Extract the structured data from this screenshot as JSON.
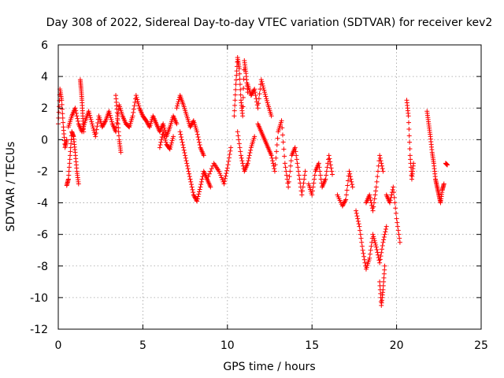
{
  "chart_data": {
    "type": "scatter",
    "title": "Day 308 of 2022, Sidereal Day-to-day VTEC variation (SDTVAR) for receiver kev2",
    "xlabel": "GPS time / hours",
    "ylabel": "SDTVAR / TECUs",
    "xlim": [
      0,
      25
    ],
    "ylim": [
      -12,
      6
    ],
    "xticks": [
      0,
      5,
      10,
      15,
      20,
      25
    ],
    "yticks": [
      -12,
      -10,
      -8,
      -6,
      -4,
      -2,
      0,
      2,
      4,
      6
    ],
    "grid": true,
    "marker": "+",
    "color": "#ff0000",
    "series": [
      {
        "name": "SDTVAR",
        "segments": [
          {
            "x": [
              0.0,
              0.1,
              0.2,
              0.3,
              0.4,
              0.5
            ],
            "y": [
              1.0,
              3.2,
              2.5,
              0.8,
              -0.5,
              0.0
            ]
          },
          {
            "x": [
              0.5,
              0.6,
              0.7,
              0.8,
              0.9,
              1.0,
              1.1,
              1.2
            ],
            "y": [
              -2.9,
              -2.5,
              -1.0,
              0.5,
              0.2,
              -0.8,
              -2.0,
              -2.8
            ]
          },
          {
            "x": [
              0.6,
              0.8,
              1.0,
              1.2,
              1.4,
              1.6,
              1.8,
              2.0,
              2.2,
              2.4,
              2.6,
              2.8,
              3.0,
              3.2,
              3.4,
              3.6,
              3.8,
              4.0,
              4.2,
              4.4,
              4.6,
              4.8,
              5.0,
              5.2,
              5.4,
              5.6,
              5.8,
              6.0,
              6.2,
              6.4,
              6.6,
              6.8,
              7.0
            ],
            "y": [
              0.8,
              1.5,
              2.0,
              1.0,
              0.5,
              1.2,
              1.8,
              1.0,
              0.2,
              1.5,
              0.8,
              1.2,
              1.8,
              1.0,
              0.5,
              2.2,
              1.5,
              1.0,
              0.8,
              1.5,
              2.8,
              2.0,
              1.5,
              1.2,
              0.8,
              1.5,
              1.0,
              0.5,
              1.0,
              0.2,
              0.8,
              1.5,
              1.0
            ]
          },
          {
            "x": [
              1.3,
              1.35,
              1.4,
              1.45,
              1.5
            ],
            "y": [
              3.8,
              3.2,
              2.5,
              1.5,
              0.5
            ]
          },
          {
            "x": [
              3.4,
              3.5,
              3.6,
              3.7
            ],
            "y": [
              2.8,
              1.5,
              0.0,
              -0.8
            ]
          },
          {
            "x": [
              6.0,
              6.2,
              6.4,
              6.6,
              6.8
            ],
            "y": [
              -0.5,
              0.5,
              -0.3,
              -0.6,
              0.2
            ]
          },
          {
            "x": [
              7.0,
              7.2,
              7.4,
              7.6,
              7.8,
              8.0,
              8.2,
              8.4,
              8.6
            ],
            "y": [
              2.0,
              2.8,
              2.2,
              1.5,
              0.8,
              1.2,
              0.5,
              -0.5,
              -1.0
            ]
          },
          {
            "x": [
              7.2,
              7.4,
              7.6,
              7.8,
              8.0,
              8.2,
              8.4,
              8.6,
              8.8,
              9.0
            ],
            "y": [
              0.5,
              -0.5,
              -1.5,
              -2.5,
              -3.5,
              -3.9,
              -3.0,
              -2.0,
              -2.5,
              -3.0
            ]
          },
          {
            "x": [
              8.8,
              9.2,
              9.5,
              9.8,
              10.0,
              10.2
            ],
            "y": [
              -2.5,
              -1.5,
              -2.0,
              -2.8,
              -1.8,
              -0.5
            ]
          },
          {
            "x": [
              10.4,
              10.5,
              10.6,
              10.7,
              10.8,
              10.9,
              11.0,
              11.1,
              11.2
            ],
            "y": [
              1.5,
              3.5,
              5.2,
              4.5,
              2.5,
              1.5,
              5.0,
              4.2,
              3.0
            ]
          },
          {
            "x": [
              10.6,
              10.8,
              11.0,
              11.2,
              11.4,
              11.6
            ],
            "y": [
              0.5,
              -1.0,
              -2.0,
              -1.5,
              -0.5,
              0.2
            ]
          },
          {
            "x": [
              11.2,
              11.4,
              11.6,
              11.8,
              12.0,
              12.2,
              12.4,
              12.6
            ],
            "y": [
              3.5,
              2.8,
              3.2,
              2.0,
              3.8,
              3.0,
              2.2,
              1.5
            ]
          },
          {
            "x": [
              11.8,
              12.0,
              12.2,
              12.4,
              12.6,
              12.8,
              13.0,
              13.2,
              13.4,
              13.6,
              13.8,
              14.0,
              14.2,
              14.4,
              14.6
            ],
            "y": [
              1.0,
              0.5,
              0.0,
              -0.5,
              -1.0,
              -2.0,
              0.5,
              1.2,
              -1.5,
              -3.0,
              -1.0,
              -0.5,
              -2.0,
              -3.5,
              -2.0
            ]
          },
          {
            "x": [
              14.8,
              15.0,
              15.2,
              15.4,
              15.6,
              15.8,
              16.0,
              16.2
            ],
            "y": [
              -2.8,
              -3.5,
              -2.0,
              -1.5,
              -3.0,
              -2.5,
              -1.0,
              -2.2
            ]
          },
          {
            "x": [
              16.5,
              16.8,
              17.0,
              17.2,
              17.4
            ],
            "y": [
              -3.5,
              -4.2,
              -3.8,
              -2.0,
              -3.0
            ]
          },
          {
            "x": [
              17.6,
              17.8,
              18.0,
              18.2,
              18.4,
              18.6,
              18.8,
              19.0,
              19.2,
              19.4
            ],
            "y": [
              -4.5,
              -5.5,
              -7.0,
              -8.2,
              -7.5,
              -6.0,
              -6.8,
              -7.8,
              -6.5,
              -5.5
            ]
          },
          {
            "x": [
              18.2,
              18.4,
              18.6,
              18.8,
              19.0,
              19.2
            ],
            "y": [
              -4.0,
              -3.5,
              -4.5,
              -3.0,
              -1.0,
              -2.0
            ]
          },
          {
            "x": [
              19.0,
              19.1,
              19.2,
              19.3
            ],
            "y": [
              -9.0,
              -10.5,
              -9.5,
              -8.0
            ]
          },
          {
            "x": [
              19.4,
              19.6,
              19.8,
              20.0,
              20.2
            ],
            "y": [
              -3.5,
              -4.0,
              -3.0,
              -5.0,
              -6.5
            ]
          },
          {
            "x": [
              20.6,
              20.7,
              20.8,
              20.9,
              21.0
            ],
            "y": [
              2.5,
              1.5,
              -1.0,
              -2.5,
              -1.5
            ]
          },
          {
            "x": [
              21.8,
              21.9,
              22.0,
              22.1,
              22.2,
              22.3,
              22.4,
              22.5,
              22.6,
              22.7,
              22.8
            ],
            "y": [
              1.8,
              1.0,
              0.2,
              -0.8,
              -1.5,
              -2.5,
              -3.0,
              -3.5,
              -4.0,
              -3.2,
              -2.8
            ]
          },
          {
            "x": [
              22.9,
              23.0
            ],
            "y": [
              -1.5,
              -1.6
            ]
          }
        ]
      }
    ]
  }
}
